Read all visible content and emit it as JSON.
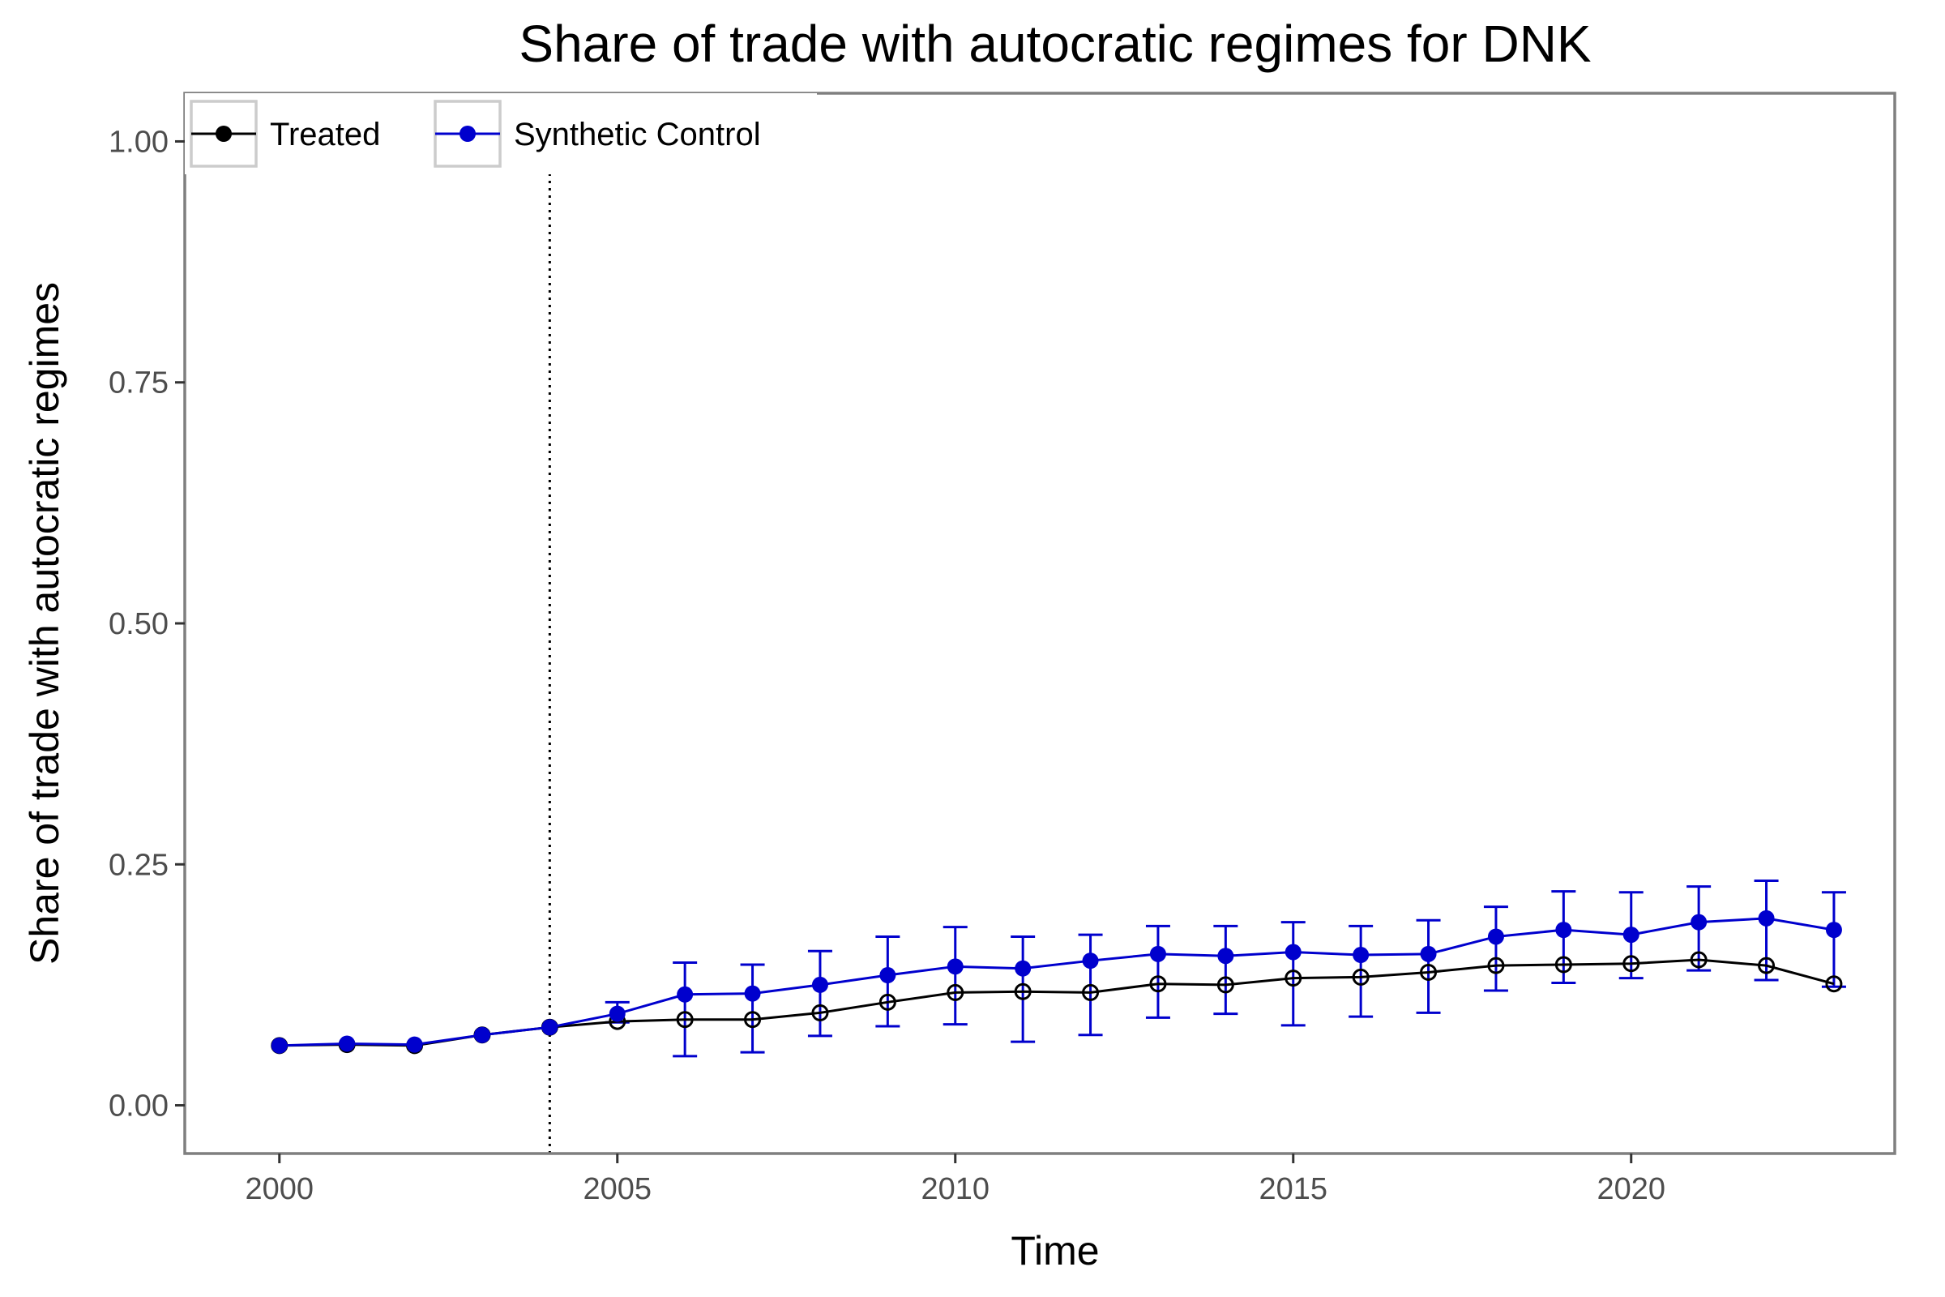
{
  "chart_data": {
    "type": "line",
    "title": "Share of trade with autocratic regimes for DNK",
    "xlabel": "Time",
    "ylabel": "Share of trade with autocratic regimes",
    "xlim": [
      1998.6,
      2023.9
    ],
    "ylim": [
      -0.05,
      1.05
    ],
    "x_ticks": [
      2000,
      2005,
      2010,
      2015,
      2020
    ],
    "x_tick_labels": [
      "2000",
      "2005",
      "2010",
      "2015",
      "2020"
    ],
    "y_ticks": [
      0,
      0.25,
      0.5,
      0.75,
      1.0
    ],
    "y_tick_labels": [
      "0.00",
      "0.25",
      "0.50",
      "0.75",
      "1.00"
    ],
    "treatment_year": 2004,
    "grid": false,
    "legend_position": "top-left",
    "x": [
      2000,
      2001,
      2002,
      2003,
      2004,
      2005,
      2006,
      2007,
      2008,
      2009,
      2010,
      2011,
      2012,
      2013,
      2014,
      2015,
      2016,
      2017,
      2018,
      2019,
      2020,
      2021,
      2022,
      2023
    ],
    "series": [
      {
        "name": "Treated",
        "color": "#000000",
        "marker": "open-circle",
        "values": [
          0.062,
          0.063,
          0.062,
          0.073,
          0.081,
          0.087,
          0.089,
          0.089,
          0.096,
          0.107,
          0.117,
          0.118,
          0.117,
          0.126,
          0.125,
          0.132,
          0.133,
          0.138,
          0.145,
          0.146,
          0.147,
          0.151,
          0.145,
          0.126
        ]
      },
      {
        "name": "Synthetic Control",
        "color": "#0000cd",
        "marker": "filled-circle",
        "values": [
          0.062,
          0.064,
          0.063,
          0.073,
          0.081,
          0.095,
          0.115,
          0.116,
          0.125,
          0.135,
          0.144,
          0.142,
          0.15,
          0.157,
          0.155,
          0.159,
          0.156,
          0.157,
          0.175,
          0.182,
          0.177,
          0.19,
          0.194,
          0.182
        ],
        "error_low": [
          null,
          null,
          null,
          null,
          null,
          0.086,
          0.051,
          0.055,
          0.072,
          0.082,
          0.084,
          0.066,
          0.073,
          0.091,
          0.095,
          0.083,
          0.092,
          0.096,
          0.119,
          0.127,
          0.132,
          0.14,
          0.13,
          0.123
        ],
        "error_high": [
          null,
          null,
          null,
          null,
          null,
          0.107,
          0.148,
          0.146,
          0.16,
          0.175,
          0.185,
          0.175,
          0.177,
          0.186,
          0.186,
          0.19,
          0.186,
          0.192,
          0.206,
          0.222,
          0.221,
          0.227,
          0.233,
          0.221
        ]
      }
    ]
  }
}
